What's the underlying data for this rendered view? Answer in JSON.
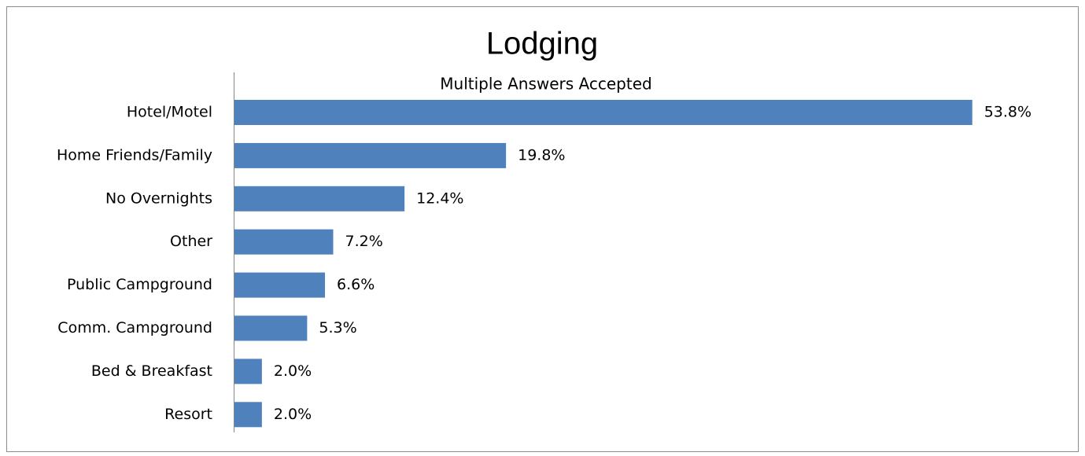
{
  "chart_data": {
    "type": "bar",
    "orientation": "horizontal",
    "title": "Lodging",
    "subtitle": "Multiple Answers Accepted",
    "categories": [
      "Hotel/Motel",
      "Home Friends/Family",
      "No Overnights",
      "Other",
      "Public Campground",
      "Comm. Campground",
      "Bed & Breakfast",
      "Resort"
    ],
    "values": [
      53.8,
      19.8,
      12.4,
      7.2,
      6.6,
      5.3,
      2.0,
      2.0
    ],
    "value_labels": [
      "53.8%",
      "19.8%",
      "12.4%",
      "7.2%",
      "6.6%",
      "5.3%",
      "2.0%",
      "2.0%"
    ],
    "color": "#4f81bd"
  }
}
